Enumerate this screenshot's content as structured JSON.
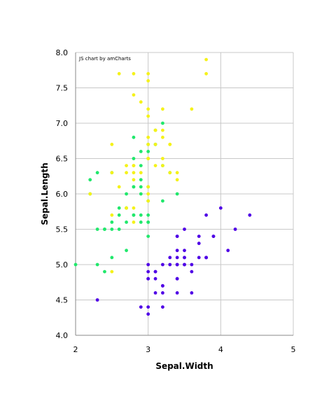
{
  "chart_data": {
    "type": "scatter",
    "credit": "JS chart by amCharts",
    "xlabel": "Sepal.Width",
    "ylabel": "Sepal.Length",
    "xlim": [
      2,
      5
    ],
    "ylim": [
      4.0,
      8.0
    ],
    "x_ticks": [
      "2",
      "3",
      "4",
      "5"
    ],
    "y_ticks": [
      "4.0",
      "4.5",
      "5.0",
      "5.5",
      "6.0",
      "6.5",
      "7.0",
      "7.5",
      "8.0"
    ],
    "grid": true,
    "colors": {
      "setosa": "#4f00e6",
      "versicolor": "#21e86c",
      "virginica": "#f5f21a",
      "grid": "#c8c8c8",
      "axis": "#8a8a8a"
    },
    "series": [
      {
        "color": "#4f00e6",
        "points": [
          [
            3.5,
            5.1
          ],
          [
            3.0,
            4.9
          ],
          [
            3.2,
            4.7
          ],
          [
            3.1,
            4.6
          ],
          [
            3.6,
            5.0
          ],
          [
            3.9,
            5.4
          ],
          [
            3.4,
            4.6
          ],
          [
            3.4,
            5.0
          ],
          [
            2.9,
            4.4
          ],
          [
            3.1,
            4.9
          ],
          [
            3.7,
            5.4
          ],
          [
            3.4,
            4.8
          ],
          [
            3.0,
            4.8
          ],
          [
            3.0,
            4.3
          ],
          [
            4.0,
            5.8
          ],
          [
            4.4,
            5.7
          ],
          [
            3.9,
            5.4
          ],
          [
            3.5,
            5.1
          ],
          [
            3.8,
            5.7
          ],
          [
            3.8,
            5.1
          ],
          [
            3.4,
            5.4
          ],
          [
            3.7,
            5.1
          ],
          [
            3.6,
            4.6
          ],
          [
            3.3,
            5.1
          ],
          [
            3.4,
            4.8
          ],
          [
            3.0,
            5.0
          ],
          [
            3.4,
            5.0
          ],
          [
            3.5,
            5.2
          ],
          [
            3.4,
            5.2
          ],
          [
            3.2,
            4.7
          ],
          [
            3.1,
            4.8
          ],
          [
            3.4,
            5.4
          ],
          [
            4.1,
            5.2
          ],
          [
            4.2,
            5.5
          ],
          [
            3.1,
            4.9
          ],
          [
            3.2,
            5.0
          ],
          [
            3.5,
            5.5
          ],
          [
            3.6,
            4.9
          ],
          [
            3.0,
            4.4
          ],
          [
            3.4,
            5.1
          ],
          [
            3.5,
            5.0
          ],
          [
            2.3,
            4.5
          ],
          [
            3.2,
            4.4
          ],
          [
            3.5,
            5.0
          ],
          [
            3.8,
            5.1
          ],
          [
            3.0,
            4.8
          ],
          [
            3.8,
            5.1
          ],
          [
            3.2,
            4.6
          ],
          [
            3.7,
            5.3
          ],
          [
            3.3,
            5.0
          ]
        ]
      },
      {
        "color": "#21e86c",
        "points": [
          [
            3.2,
            7.0
          ],
          [
            3.2,
            6.4
          ],
          [
            3.1,
            6.9
          ],
          [
            2.3,
            5.5
          ],
          [
            2.8,
            6.5
          ],
          [
            2.8,
            5.7
          ],
          [
            3.3,
            6.3
          ],
          [
            2.4,
            4.9
          ],
          [
            2.9,
            6.6
          ],
          [
            2.7,
            5.2
          ],
          [
            2.0,
            5.0
          ],
          [
            3.0,
            5.9
          ],
          [
            2.2,
            6.0
          ],
          [
            2.9,
            6.1
          ],
          [
            2.9,
            5.6
          ],
          [
            3.1,
            6.7
          ],
          [
            3.0,
            5.6
          ],
          [
            2.7,
            5.8
          ],
          [
            2.2,
            6.2
          ],
          [
            2.5,
            5.6
          ],
          [
            3.2,
            5.9
          ],
          [
            2.8,
            6.1
          ],
          [
            2.5,
            6.3
          ],
          [
            2.8,
            6.1
          ],
          [
            2.9,
            6.4
          ],
          [
            3.0,
            6.6
          ],
          [
            2.8,
            6.8
          ],
          [
            3.0,
            6.7
          ],
          [
            2.9,
            6.0
          ],
          [
            2.6,
            5.7
          ],
          [
            2.4,
            5.5
          ],
          [
            2.4,
            5.5
          ],
          [
            2.7,
            5.8
          ],
          [
            2.7,
            6.0
          ],
          [
            3.0,
            5.4
          ],
          [
            3.4,
            6.0
          ],
          [
            3.1,
            6.7
          ],
          [
            2.3,
            6.3
          ],
          [
            3.0,
            5.6
          ],
          [
            2.5,
            5.5
          ],
          [
            2.6,
            5.5
          ],
          [
            3.0,
            6.1
          ],
          [
            2.6,
            5.8
          ],
          [
            2.3,
            5.0
          ],
          [
            2.7,
            5.6
          ],
          [
            3.0,
            5.7
          ],
          [
            2.9,
            5.7
          ],
          [
            2.9,
            6.2
          ],
          [
            2.5,
            5.1
          ],
          [
            2.8,
            5.7
          ]
        ]
      },
      {
        "color": "#f5f21a",
        "points": [
          [
            3.3,
            6.3
          ],
          [
            2.7,
            5.8
          ],
          [
            3.0,
            7.1
          ],
          [
            2.9,
            6.3
          ],
          [
            3.0,
            6.5
          ],
          [
            3.0,
            7.6
          ],
          [
            2.5,
            4.9
          ],
          [
            2.9,
            7.3
          ],
          [
            2.5,
            6.7
          ],
          [
            3.6,
            7.2
          ],
          [
            3.2,
            6.5
          ],
          [
            2.7,
            6.4
          ],
          [
            3.0,
            6.8
          ],
          [
            2.5,
            5.7
          ],
          [
            2.8,
            5.8
          ],
          [
            3.2,
            6.4
          ],
          [
            3.0,
            6.5
          ],
          [
            3.8,
            7.7
          ],
          [
            2.6,
            7.7
          ],
          [
            2.2,
            6.0
          ],
          [
            3.2,
            6.9
          ],
          [
            2.8,
            5.6
          ],
          [
            2.8,
            7.7
          ],
          [
            2.7,
            6.3
          ],
          [
            3.3,
            6.7
          ],
          [
            3.2,
            7.2
          ],
          [
            2.8,
            6.2
          ],
          [
            3.0,
            6.1
          ],
          [
            2.8,
            6.4
          ],
          [
            3.0,
            7.2
          ],
          [
            2.8,
            7.4
          ],
          [
            3.8,
            7.9
          ],
          [
            2.8,
            6.4
          ],
          [
            2.8,
            6.3
          ],
          [
            2.6,
            6.1
          ],
          [
            3.0,
            7.7
          ],
          [
            3.4,
            6.3
          ],
          [
            3.1,
            6.4
          ],
          [
            3.0,
            6.0
          ],
          [
            3.1,
            6.9
          ],
          [
            3.1,
            6.7
          ],
          [
            3.1,
            6.9
          ],
          [
            2.7,
            5.8
          ],
          [
            3.2,
            6.8
          ],
          [
            3.3,
            6.7
          ],
          [
            3.0,
            6.7
          ],
          [
            2.5,
            6.3
          ],
          [
            3.0,
            6.5
          ],
          [
            3.4,
            6.2
          ],
          [
            3.0,
            5.9
          ]
        ]
      }
    ]
  }
}
